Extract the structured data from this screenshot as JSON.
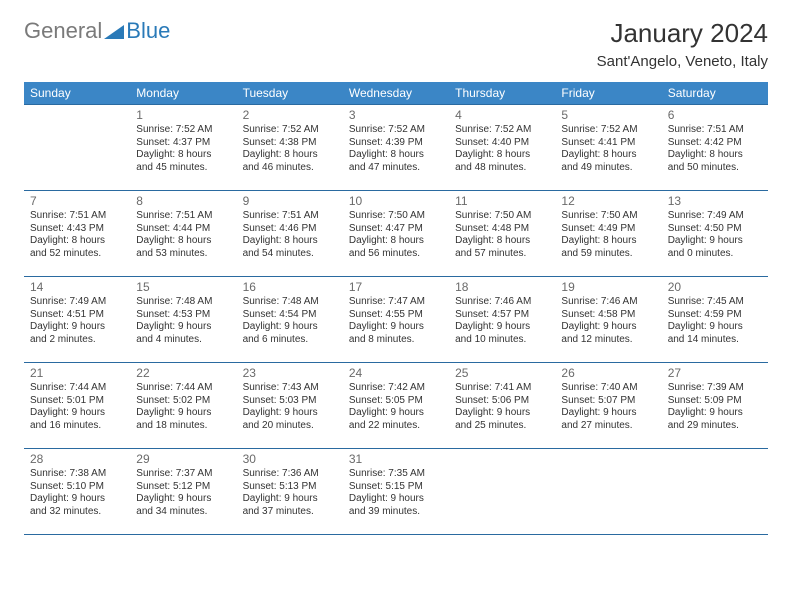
{
  "logo": {
    "general": "General",
    "blue": "Blue"
  },
  "title": "January 2024",
  "location": "Sant'Angelo, Veneto, Italy",
  "header_bg": "#3b86c6",
  "border_color": "#2a6aa0",
  "weekdays": [
    "Sunday",
    "Monday",
    "Tuesday",
    "Wednesday",
    "Thursday",
    "Friday",
    "Saturday"
  ],
  "weeks": [
    [
      null,
      {
        "n": "1",
        "sr": "7:52 AM",
        "ss": "4:37 PM",
        "dl": "8 hours and 45 minutes."
      },
      {
        "n": "2",
        "sr": "7:52 AM",
        "ss": "4:38 PM",
        "dl": "8 hours and 46 minutes."
      },
      {
        "n": "3",
        "sr": "7:52 AM",
        "ss": "4:39 PM",
        "dl": "8 hours and 47 minutes."
      },
      {
        "n": "4",
        "sr": "7:52 AM",
        "ss": "4:40 PM",
        "dl": "8 hours and 48 minutes."
      },
      {
        "n": "5",
        "sr": "7:52 AM",
        "ss": "4:41 PM",
        "dl": "8 hours and 49 minutes."
      },
      {
        "n": "6",
        "sr": "7:51 AM",
        "ss": "4:42 PM",
        "dl": "8 hours and 50 minutes."
      }
    ],
    [
      {
        "n": "7",
        "sr": "7:51 AM",
        "ss": "4:43 PM",
        "dl": "8 hours and 52 minutes."
      },
      {
        "n": "8",
        "sr": "7:51 AM",
        "ss": "4:44 PM",
        "dl": "8 hours and 53 minutes."
      },
      {
        "n": "9",
        "sr": "7:51 AM",
        "ss": "4:46 PM",
        "dl": "8 hours and 54 minutes."
      },
      {
        "n": "10",
        "sr": "7:50 AM",
        "ss": "4:47 PM",
        "dl": "8 hours and 56 minutes."
      },
      {
        "n": "11",
        "sr": "7:50 AM",
        "ss": "4:48 PM",
        "dl": "8 hours and 57 minutes."
      },
      {
        "n": "12",
        "sr": "7:50 AM",
        "ss": "4:49 PM",
        "dl": "8 hours and 59 minutes."
      },
      {
        "n": "13",
        "sr": "7:49 AM",
        "ss": "4:50 PM",
        "dl": "9 hours and 0 minutes."
      }
    ],
    [
      {
        "n": "14",
        "sr": "7:49 AM",
        "ss": "4:51 PM",
        "dl": "9 hours and 2 minutes."
      },
      {
        "n": "15",
        "sr": "7:48 AM",
        "ss": "4:53 PM",
        "dl": "9 hours and 4 minutes."
      },
      {
        "n": "16",
        "sr": "7:48 AM",
        "ss": "4:54 PM",
        "dl": "9 hours and 6 minutes."
      },
      {
        "n": "17",
        "sr": "7:47 AM",
        "ss": "4:55 PM",
        "dl": "9 hours and 8 minutes."
      },
      {
        "n": "18",
        "sr": "7:46 AM",
        "ss": "4:57 PM",
        "dl": "9 hours and 10 minutes."
      },
      {
        "n": "19",
        "sr": "7:46 AM",
        "ss": "4:58 PM",
        "dl": "9 hours and 12 minutes."
      },
      {
        "n": "20",
        "sr": "7:45 AM",
        "ss": "4:59 PM",
        "dl": "9 hours and 14 minutes."
      }
    ],
    [
      {
        "n": "21",
        "sr": "7:44 AM",
        "ss": "5:01 PM",
        "dl": "9 hours and 16 minutes."
      },
      {
        "n": "22",
        "sr": "7:44 AM",
        "ss": "5:02 PM",
        "dl": "9 hours and 18 minutes."
      },
      {
        "n": "23",
        "sr": "7:43 AM",
        "ss": "5:03 PM",
        "dl": "9 hours and 20 minutes."
      },
      {
        "n": "24",
        "sr": "7:42 AM",
        "ss": "5:05 PM",
        "dl": "9 hours and 22 minutes."
      },
      {
        "n": "25",
        "sr": "7:41 AM",
        "ss": "5:06 PM",
        "dl": "9 hours and 25 minutes."
      },
      {
        "n": "26",
        "sr": "7:40 AM",
        "ss": "5:07 PM",
        "dl": "9 hours and 27 minutes."
      },
      {
        "n": "27",
        "sr": "7:39 AM",
        "ss": "5:09 PM",
        "dl": "9 hours and 29 minutes."
      }
    ],
    [
      {
        "n": "28",
        "sr": "7:38 AM",
        "ss": "5:10 PM",
        "dl": "9 hours and 32 minutes."
      },
      {
        "n": "29",
        "sr": "7:37 AM",
        "ss": "5:12 PM",
        "dl": "9 hours and 34 minutes."
      },
      {
        "n": "30",
        "sr": "7:36 AM",
        "ss": "5:13 PM",
        "dl": "9 hours and 37 minutes."
      },
      {
        "n": "31",
        "sr": "7:35 AM",
        "ss": "5:15 PM",
        "dl": "9 hours and 39 minutes."
      },
      null,
      null,
      null
    ]
  ]
}
